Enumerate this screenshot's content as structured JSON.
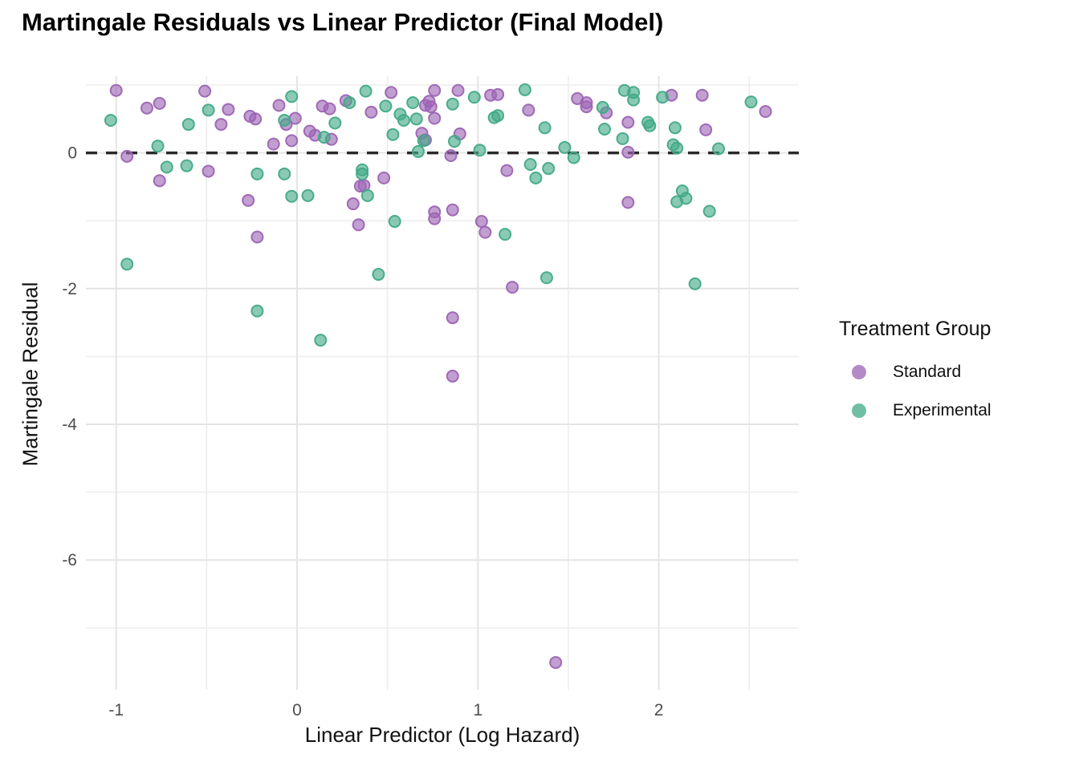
{
  "title": "Martingale Residuals vs Linear Predictor (Final Model)",
  "legend": {
    "title": "Treatment Group",
    "items": [
      {
        "label": "Standard",
        "color": "#9c64b4"
      },
      {
        "label": "Experimental",
        "color": "#42a986"
      }
    ]
  },
  "axes": {
    "x_label": "Linear Predictor (Log Hazard)",
    "y_label": "Martingale Residual"
  },
  "colors": {
    "background": "#ffffff",
    "grid_major": "#e4e4e4",
    "grid_minor": "#ededed",
    "reference_line": "#2a2a2a",
    "tick_text": "#4d4d4d",
    "standard_stroke": "#9c64b4",
    "standard_fill": "#b286c6",
    "experimental_stroke": "#42a986",
    "experimental_fill": "#6fc3a4"
  },
  "chart_data": {
    "type": "scatter",
    "title": "Martingale Residuals vs Linear Predictor (Final Model)",
    "xlabel": "Linear Predictor (Log Hazard)",
    "ylabel": "Martingale Residual",
    "legend_title": "Treatment Group",
    "legend_position": "right",
    "grid": true,
    "xlim": [
      -1.17,
      2.78
    ],
    "ylim": [
      -7.92,
      1.13
    ],
    "x_ticks": [
      -1,
      0,
      1,
      2
    ],
    "y_ticks": [
      0,
      -2,
      -4,
      -6
    ],
    "x_minor": [
      -0.5,
      0.5,
      1.5,
      2.5
    ],
    "y_minor": [
      1,
      -1,
      -3,
      -5,
      -7
    ],
    "reference_line_y": 0,
    "series": [
      {
        "name": "Standard",
        "color": "#9c64b4",
        "points": [
          [
            -1.0,
            0.92
          ],
          [
            -0.94,
            -0.05
          ],
          [
            -0.83,
            0.66
          ],
          [
            -0.76,
            0.73
          ],
          [
            -0.76,
            -0.41
          ],
          [
            -0.51,
            0.91
          ],
          [
            -0.49,
            -0.27
          ],
          [
            -0.42,
            0.42
          ],
          [
            -0.38,
            0.64
          ],
          [
            -0.27,
            -0.7
          ],
          [
            -0.26,
            0.54
          ],
          [
            -0.23,
            0.5
          ],
          [
            -0.22,
            -1.24
          ],
          [
            -0.13,
            0.13
          ],
          [
            -0.1,
            0.7
          ],
          [
            -0.06,
            0.42
          ],
          [
            -0.03,
            0.18
          ],
          [
            -0.01,
            0.51
          ],
          [
            0.07,
            0.32
          ],
          [
            0.1,
            0.26
          ],
          [
            0.14,
            0.69
          ],
          [
            0.18,
            0.65
          ],
          [
            0.19,
            0.2
          ],
          [
            0.27,
            0.77
          ],
          [
            0.31,
            -0.75
          ],
          [
            0.34,
            -1.06
          ],
          [
            0.35,
            -0.49
          ],
          [
            0.37,
            -0.48
          ],
          [
            0.41,
            0.6
          ],
          [
            0.48,
            -0.37
          ],
          [
            0.52,
            0.89
          ],
          [
            0.69,
            0.29
          ],
          [
            0.71,
            0.7
          ],
          [
            0.71,
            0.19
          ],
          [
            0.73,
            0.76
          ],
          [
            0.74,
            0.68
          ],
          [
            0.76,
            0.92
          ],
          [
            0.76,
            0.51
          ],
          [
            0.76,
            -0.87
          ],
          [
            0.76,
            -0.97
          ],
          [
            0.85,
            -0.04
          ],
          [
            0.86,
            -0.84
          ],
          [
            0.86,
            -2.43
          ],
          [
            0.86,
            -3.29
          ],
          [
            0.89,
            0.92
          ],
          [
            0.9,
            0.28
          ],
          [
            1.02,
            -1.01
          ],
          [
            1.04,
            -1.17
          ],
          [
            1.07,
            0.85
          ],
          [
            1.11,
            0.86
          ],
          [
            1.16,
            -0.26
          ],
          [
            1.19,
            -1.98
          ],
          [
            1.28,
            0.63
          ],
          [
            1.43,
            -7.51
          ],
          [
            1.55,
            0.8
          ],
          [
            1.6,
            0.74
          ],
          [
            1.6,
            0.68
          ],
          [
            1.71,
            0.59
          ],
          [
            1.83,
            0.45
          ],
          [
            1.83,
            0.01
          ],
          [
            1.83,
            -0.73
          ],
          [
            2.07,
            0.85
          ],
          [
            2.24,
            0.85
          ],
          [
            2.26,
            0.34
          ],
          [
            2.59,
            0.61
          ]
        ]
      },
      {
        "name": "Experimental",
        "color": "#42a986",
        "points": [
          [
            -1.03,
            0.48
          ],
          [
            -0.94,
            -1.64
          ],
          [
            -0.77,
            0.1
          ],
          [
            -0.72,
            -0.21
          ],
          [
            -0.61,
            -0.19
          ],
          [
            -0.6,
            0.42
          ],
          [
            -0.49,
            0.63
          ],
          [
            -0.22,
            -0.31
          ],
          [
            -0.22,
            -2.33
          ],
          [
            -0.07,
            -0.31
          ],
          [
            -0.07,
            0.48
          ],
          [
            -0.03,
            0.83
          ],
          [
            -0.03,
            -0.64
          ],
          [
            0.06,
            -0.63
          ],
          [
            0.13,
            -2.76
          ],
          [
            0.15,
            0.23
          ],
          [
            0.21,
            0.44
          ],
          [
            0.29,
            0.74
          ],
          [
            0.36,
            -0.25
          ],
          [
            0.36,
            -0.31
          ],
          [
            0.38,
            0.91
          ],
          [
            0.39,
            -0.63
          ],
          [
            0.45,
            -1.79
          ],
          [
            0.49,
            0.69
          ],
          [
            0.53,
            0.27
          ],
          [
            0.54,
            -1.01
          ],
          [
            0.57,
            0.57
          ],
          [
            0.59,
            0.48
          ],
          [
            0.64,
            0.74
          ],
          [
            0.66,
            0.5
          ],
          [
            0.67,
            0.02
          ],
          [
            0.7,
            0.18
          ],
          [
            0.86,
            0.72
          ],
          [
            0.87,
            0.17
          ],
          [
            0.98,
            0.82
          ],
          [
            1.01,
            0.04
          ],
          [
            1.09,
            0.52
          ],
          [
            1.11,
            0.55
          ],
          [
            1.15,
            -1.2
          ],
          [
            1.26,
            0.93
          ],
          [
            1.29,
            -0.17
          ],
          [
            1.32,
            -0.37
          ],
          [
            1.37,
            0.37
          ],
          [
            1.38,
            -1.84
          ],
          [
            1.39,
            -0.23
          ],
          [
            1.48,
            0.08
          ],
          [
            1.53,
            -0.07
          ],
          [
            1.69,
            0.67
          ],
          [
            1.7,
            0.35
          ],
          [
            1.8,
            0.21
          ],
          [
            1.81,
            0.92
          ],
          [
            1.86,
            0.89
          ],
          [
            1.86,
            0.78
          ],
          [
            1.94,
            0.45
          ],
          [
            1.95,
            0.4
          ],
          [
            2.02,
            0.82
          ],
          [
            2.09,
            0.37
          ],
          [
            2.08,
            0.12
          ],
          [
            2.1,
            0.07
          ],
          [
            2.1,
            -0.72
          ],
          [
            2.13,
            -0.56
          ],
          [
            2.15,
            -0.67
          ],
          [
            2.2,
            -1.93
          ],
          [
            2.28,
            -0.86
          ],
          [
            2.33,
            0.06
          ],
          [
            2.51,
            0.75
          ]
        ]
      }
    ]
  }
}
